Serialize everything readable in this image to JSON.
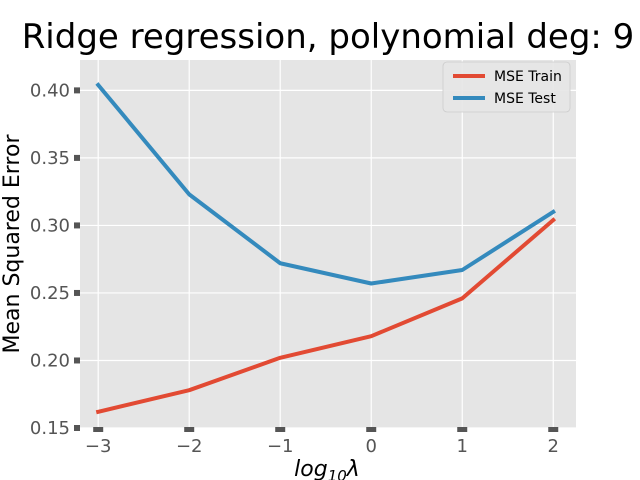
{
  "chart_data": {
    "type": "line",
    "title": "Ridge regression, polynomial deg: 9",
    "xlabel": {
      "base": "log",
      "sub": "10",
      "symbol": "λ"
    },
    "ylabel": "Mean Squared Error",
    "x": [
      -3,
      -2,
      -1,
      0,
      1,
      2
    ],
    "xticks": [
      -3,
      -2,
      -1,
      0,
      1,
      2
    ],
    "xtick_labels": [
      "−3",
      "−2",
      "−1",
      "0",
      "1",
      "2"
    ],
    "yticks": [
      0.15,
      0.2,
      0.25,
      0.3,
      0.35,
      0.4
    ],
    "ytick_labels": [
      "0.15",
      "0.20",
      "0.25",
      "0.30",
      "0.35",
      "0.40"
    ],
    "xlim": [
      -3.2,
      2.25
    ],
    "ylim": [
      0.15,
      0.4225
    ],
    "grid": true,
    "legend_position": "top-right",
    "series": [
      {
        "name": "MSE Train",
        "color": "#E24A33",
        "values": [
          0.162,
          0.178,
          0.202,
          0.218,
          0.246,
          0.304
        ]
      },
      {
        "name": "MSE Test",
        "color": "#348ABD",
        "values": [
          0.404,
          0.323,
          0.272,
          0.257,
          0.267,
          0.31
        ]
      }
    ]
  }
}
